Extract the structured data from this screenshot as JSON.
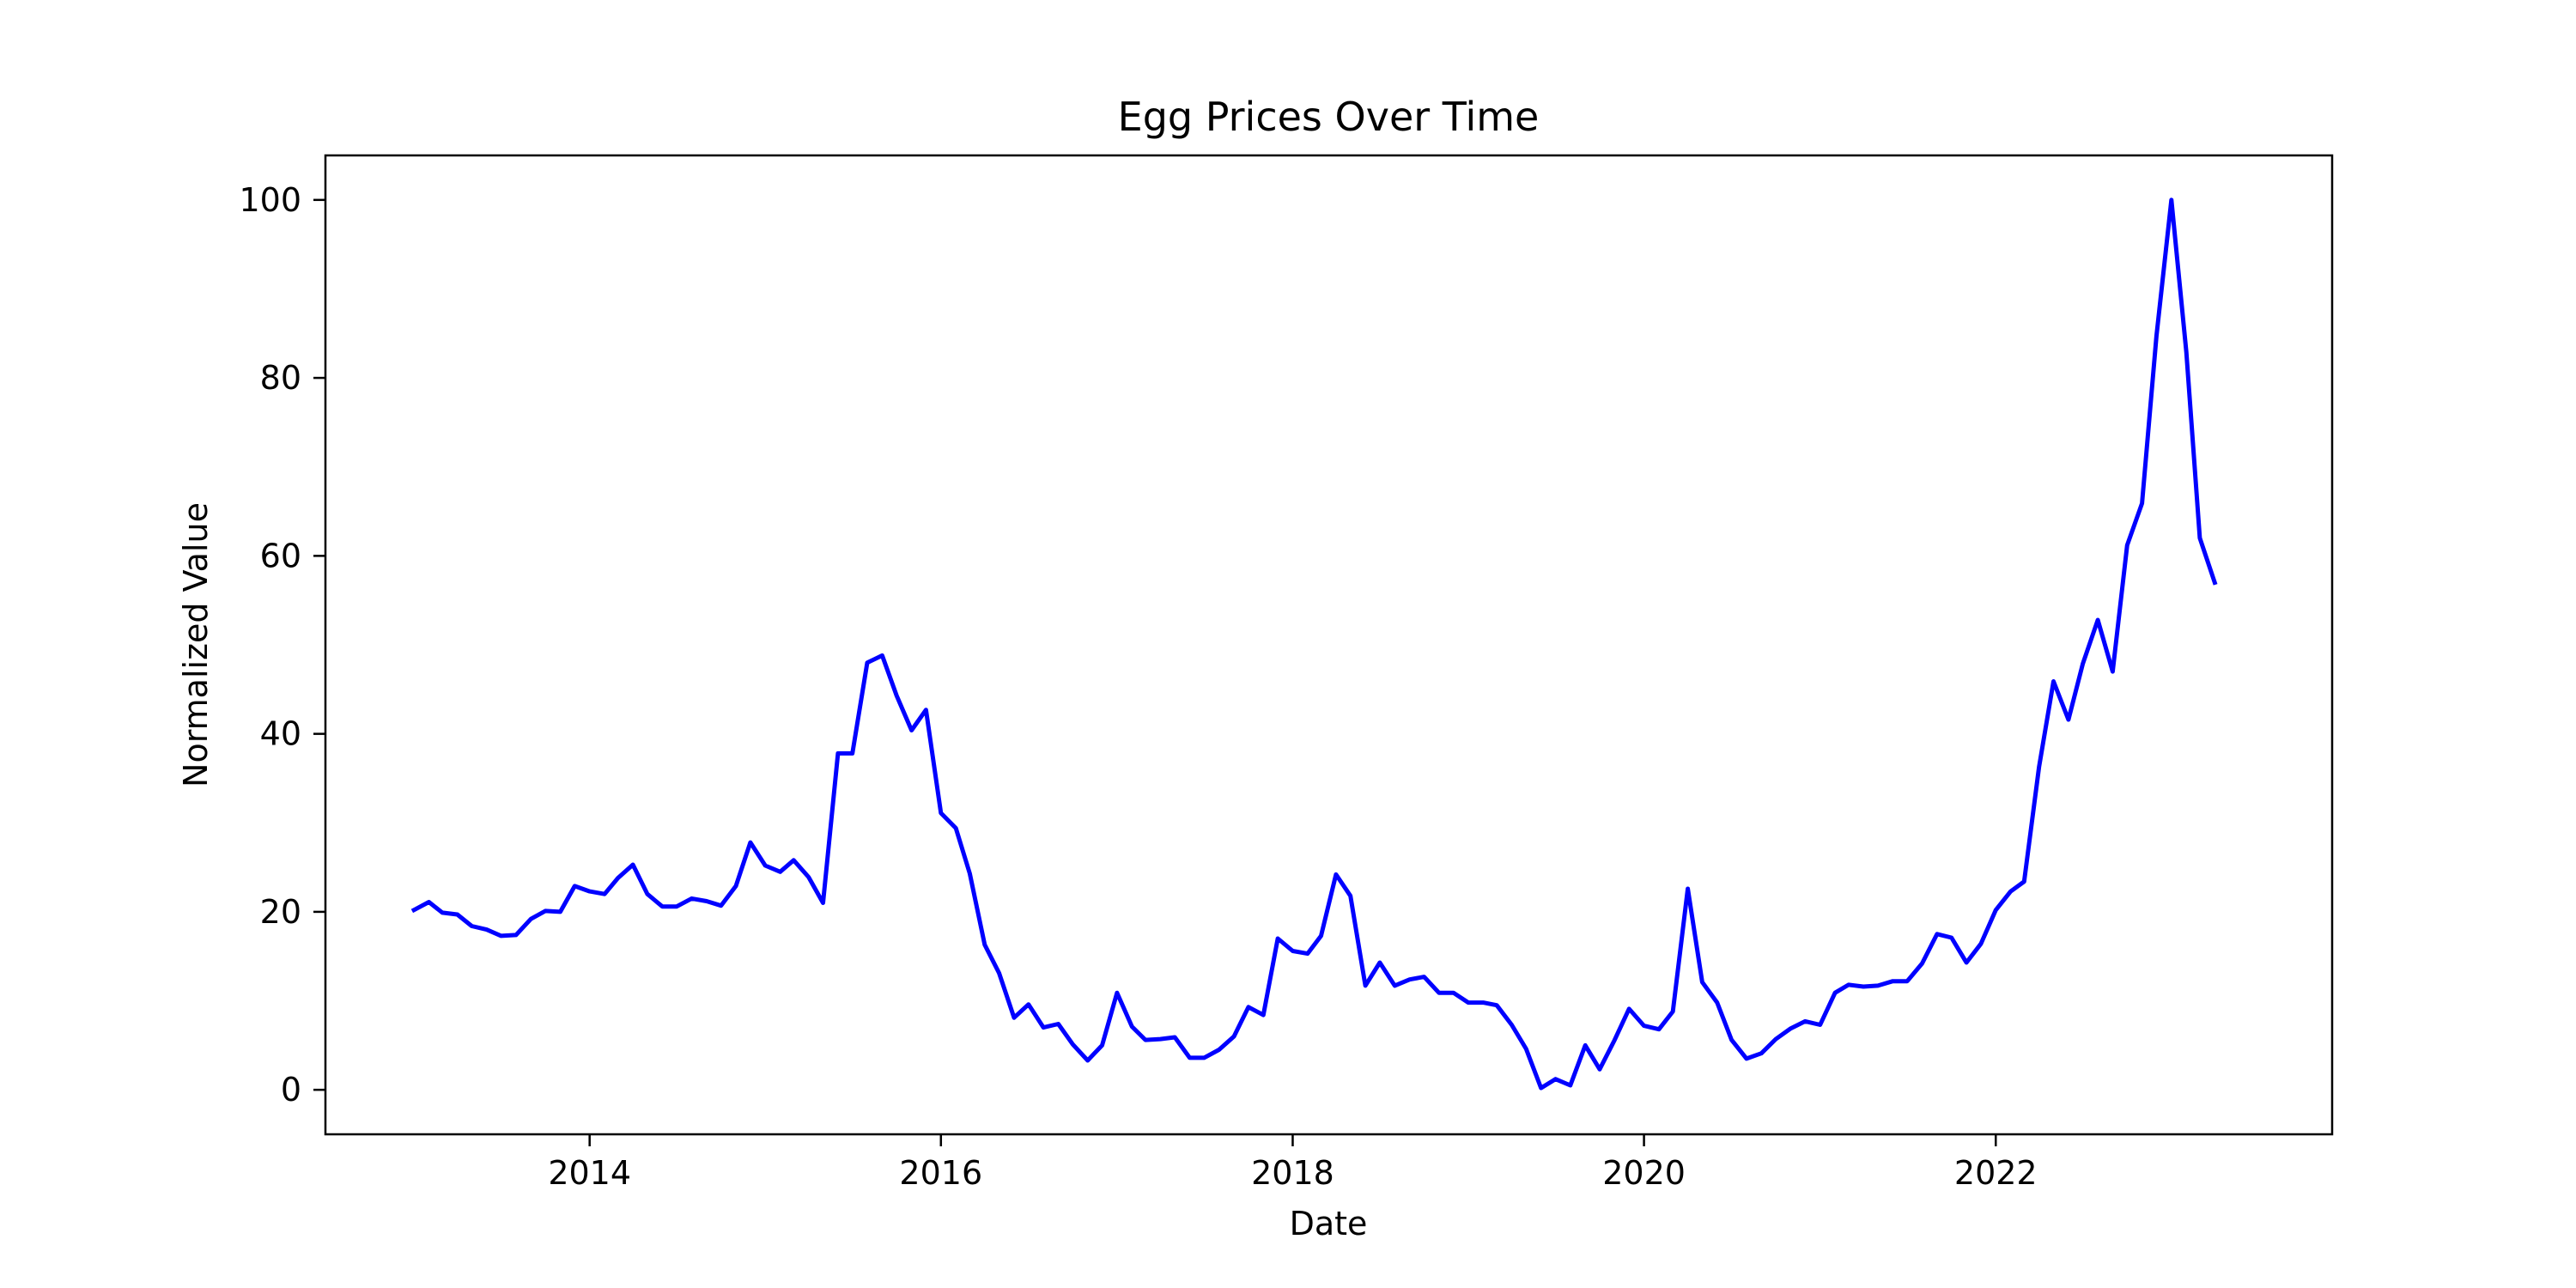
{
  "chart_data": {
    "type": "line",
    "title": "Egg Prices Over Time",
    "xlabel": "Date",
    "ylabel": "Normalized Value",
    "xlim": [
      "2012-07-01",
      "2023-12-01"
    ],
    "ylim": [
      -5,
      105
    ],
    "xticks": [
      {
        "label": "2014",
        "date": "2014-01-01"
      },
      {
        "label": "2016",
        "date": "2016-01-01"
      },
      {
        "label": "2018",
        "date": "2018-01-01"
      },
      {
        "label": "2020",
        "date": "2020-01-01"
      },
      {
        "label": "2022",
        "date": "2022-01-01"
      }
    ],
    "yticks": [
      0,
      20,
      40,
      60,
      80,
      100
    ],
    "grid": false,
    "line_color": "#0000ff",
    "series": [
      {
        "x": [
          "2013-01-01",
          "2013-02-01",
          "2013-03-01",
          "2013-04-01",
          "2013-05-01",
          "2013-06-01",
          "2013-07-01",
          "2013-08-01",
          "2013-09-01",
          "2013-10-01",
          "2013-11-01",
          "2013-12-01",
          "2014-01-01",
          "2014-02-01",
          "2014-03-01",
          "2014-04-01",
          "2014-05-01",
          "2014-06-01",
          "2014-07-01",
          "2014-08-01",
          "2014-09-01",
          "2014-10-01",
          "2014-11-01",
          "2014-12-01",
          "2015-01-01",
          "2015-02-01",
          "2015-03-01",
          "2015-04-01",
          "2015-05-01",
          "2015-06-01",
          "2015-07-01",
          "2015-08-01",
          "2015-09-01",
          "2015-10-01",
          "2015-11-01",
          "2015-12-01",
          "2016-01-01",
          "2016-02-01",
          "2016-03-01",
          "2016-04-01",
          "2016-05-01",
          "2016-06-01",
          "2016-07-01",
          "2016-08-01",
          "2016-09-01",
          "2016-10-01",
          "2016-11-01",
          "2016-12-01",
          "2017-01-01",
          "2017-02-01",
          "2017-03-01",
          "2017-04-01",
          "2017-05-01",
          "2017-06-01",
          "2017-07-01",
          "2017-08-01",
          "2017-09-01",
          "2017-10-01",
          "2017-11-01",
          "2017-12-01",
          "2018-01-01",
          "2018-02-01",
          "2018-03-01",
          "2018-04-01",
          "2018-05-01",
          "2018-06-01",
          "2018-07-01",
          "2018-08-01",
          "2018-09-01",
          "2018-10-01",
          "2018-11-01",
          "2018-12-01",
          "2019-01-01",
          "2019-02-01",
          "2019-03-01",
          "2019-04-01",
          "2019-05-01",
          "2019-06-01",
          "2019-07-01",
          "2019-08-01",
          "2019-09-01",
          "2019-10-01",
          "2019-11-01",
          "2019-12-01",
          "2020-01-01",
          "2020-02-01",
          "2020-03-01",
          "2020-04-01",
          "2020-05-01",
          "2020-06-01",
          "2020-07-01",
          "2020-08-01",
          "2020-09-01",
          "2020-10-01",
          "2020-11-01",
          "2020-12-01",
          "2021-01-01",
          "2021-02-01",
          "2021-03-01",
          "2021-04-01",
          "2021-05-01",
          "2021-06-01",
          "2021-07-01",
          "2021-08-01",
          "2021-09-01",
          "2021-10-01",
          "2021-11-01",
          "2021-12-01",
          "2022-01-01",
          "2022-02-01",
          "2022-03-01",
          "2022-04-01",
          "2022-05-01",
          "2022-06-01",
          "2022-07-01",
          "2022-08-01",
          "2022-09-01",
          "2022-10-01",
          "2022-11-01",
          "2022-12-01",
          "2023-01-01",
          "2023-02-01",
          "2023-03-01",
          "2023-04-01"
        ],
        "values": [
          20.2,
          21.1,
          19.9,
          19.7,
          18.4,
          18.0,
          17.3,
          17.4,
          19.2,
          20.1,
          20.0,
          22.9,
          22.3,
          22.0,
          23.8,
          25.3,
          22.0,
          20.6,
          20.6,
          21.5,
          21.2,
          20.7,
          22.9,
          27.8,
          25.2,
          24.5,
          25.8,
          23.9,
          21.0,
          37.8,
          37.8,
          48.0,
          48.8,
          44.3,
          40.4,
          42.7,
          31.1,
          29.4,
          24.3,
          16.3,
          13.1,
          8.1,
          9.6,
          7.0,
          7.4,
          5.1,
          3.3,
          5.0,
          10.9,
          7.1,
          5.6,
          5.7,
          5.9,
          3.6,
          3.6,
          4.5,
          6.0,
          9.3,
          8.4,
          17.0,
          15.6,
          15.3,
          17.3,
          24.2,
          21.8,
          11.7,
          14.3,
          11.7,
          12.4,
          12.7,
          10.9,
          10.9,
          9.8,
          9.8,
          9.5,
          7.3,
          4.6,
          0.2,
          1.2,
          0.5,
          5.0,
          2.3,
          5.6,
          9.1,
          7.2,
          6.8,
          8.8,
          22.6,
          12.1,
          9.8,
          5.6,
          3.5,
          4.1,
          5.7,
          6.9,
          7.7,
          7.3,
          10.9,
          11.8,
          11.6,
          11.7,
          12.2,
          12.2,
          14.2,
          17.5,
          17.1,
          14.3,
          16.4,
          20.2,
          22.3,
          23.4,
          36.3,
          45.9,
          41.6,
          47.9,
          52.8,
          47.0,
          61.2,
          65.9,
          84.7,
          100.0,
          82.9,
          62.0,
          57.0
        ]
      }
    ]
  }
}
